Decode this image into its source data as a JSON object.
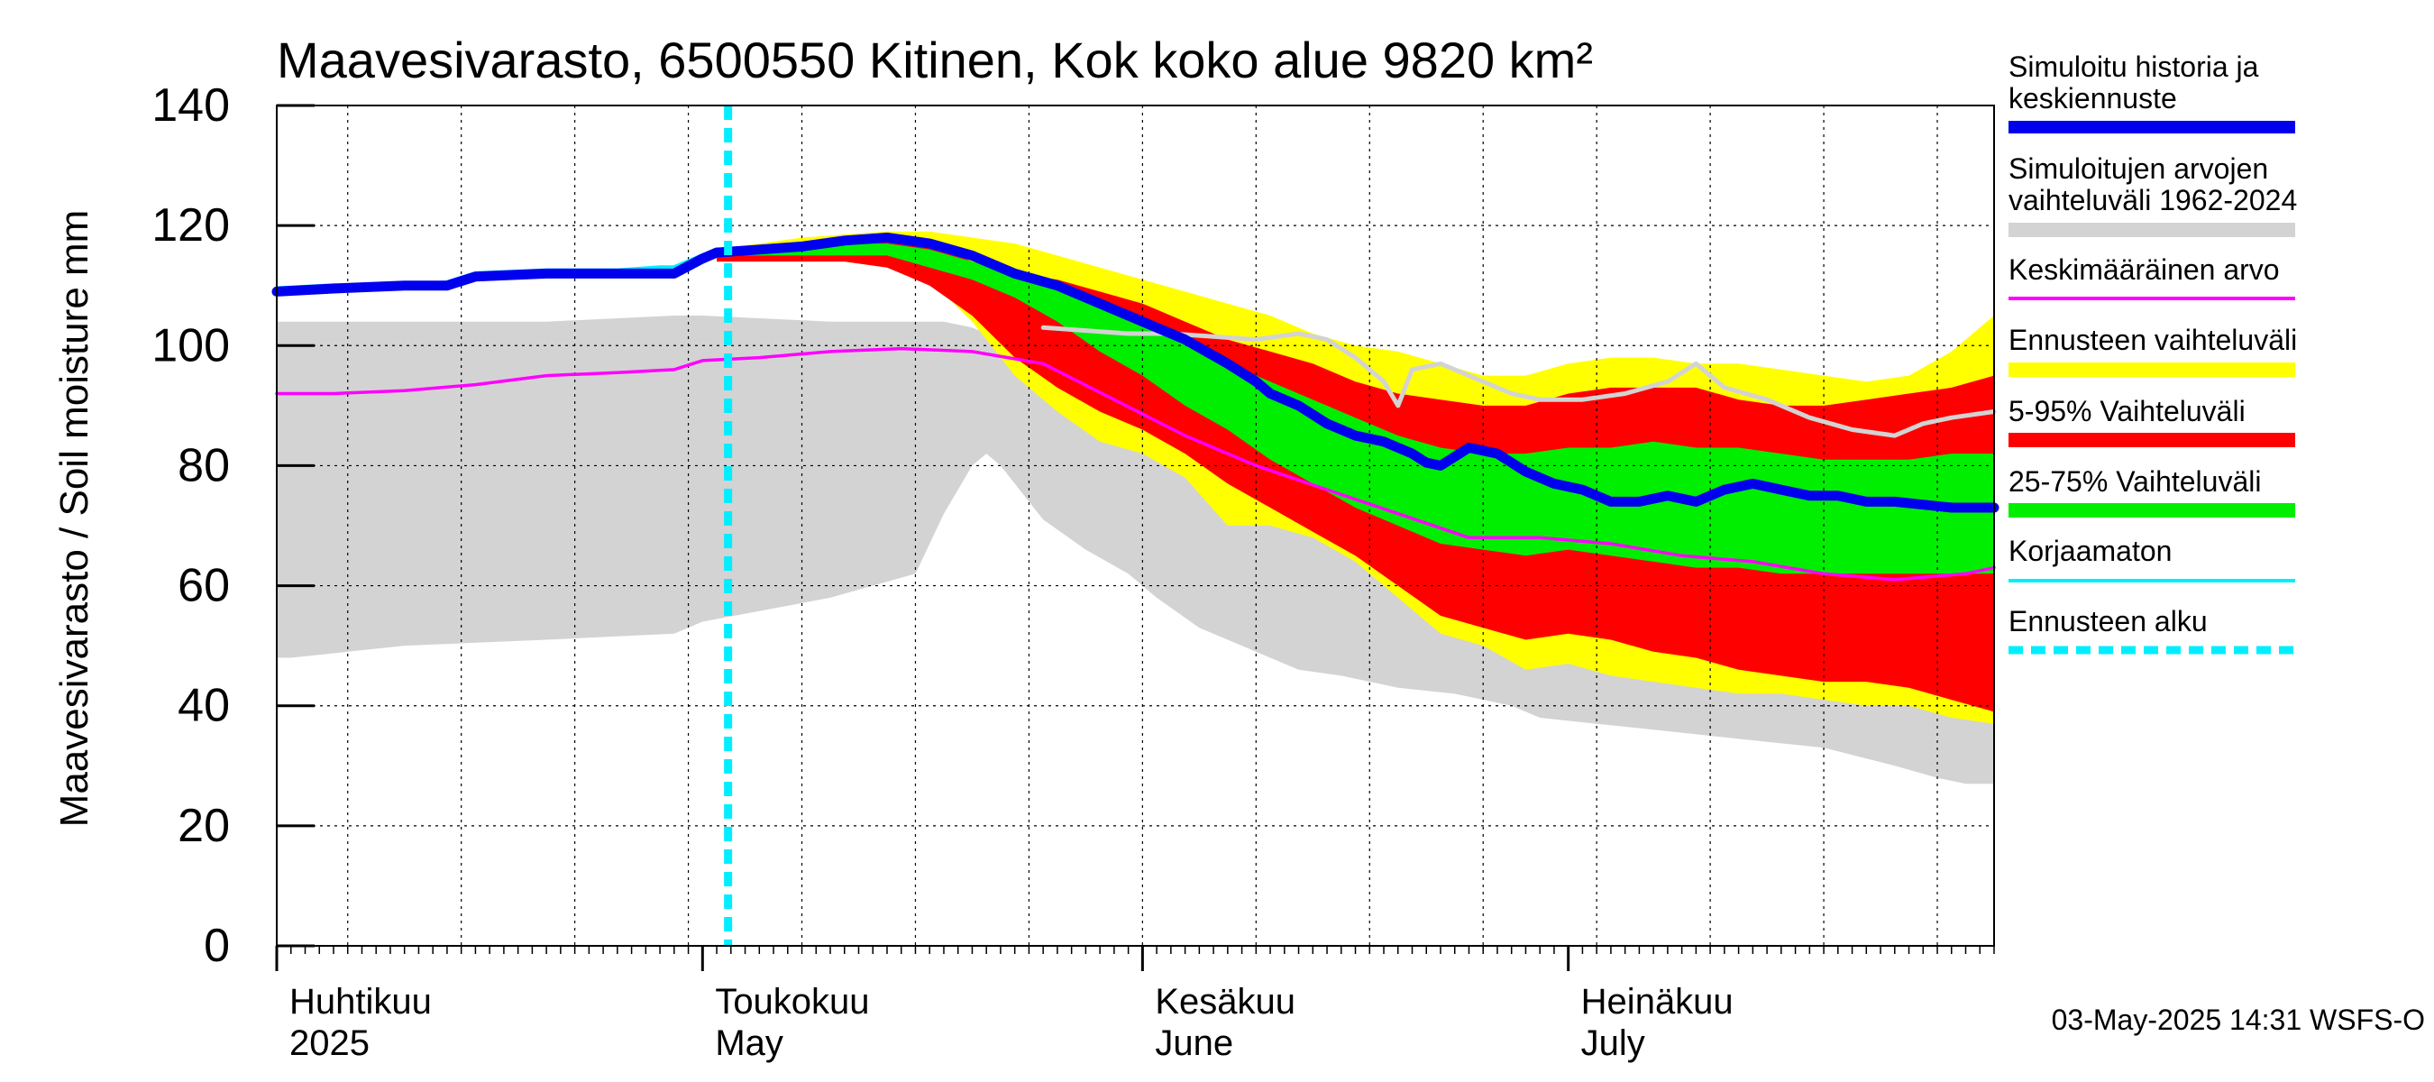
{
  "chart_data": {
    "type": "area",
    "title": "Maavesivarasto, 6500550 Kitinen, Kok koko alue 9820 km²",
    "ylabel": "Maavesivarasto / Soil moisture   mm",
    "ylim": [
      0,
      140
    ],
    "yticks": [
      0,
      20,
      40,
      60,
      80,
      100,
      120,
      140
    ],
    "x_unit": "day of year 2025",
    "xlim": [
      91,
      212
    ],
    "month_labels": [
      {
        "fi": "Huhtikuu",
        "en": "2025",
        "day": 91
      },
      {
        "fi": "Toukokuu",
        "en": "May",
        "day": 121
      },
      {
        "fi": "Kesäkuu",
        "en": "June",
        "day": 152
      },
      {
        "fi": "Heinäkuu",
        "en": "July",
        "day": 182
      }
    ],
    "forecast_start_day": 122.8,
    "footer": "03-May-2025 14:31 WSFS-O",
    "legend": [
      {
        "label": "Simuloitu historia ja keskiennuste",
        "color": "#0000ee",
        "style": "thick"
      },
      {
        "label": "Simuloitujen arvojen vaihteluväli 1962-2024",
        "color": "#d3d3d3",
        "style": "band"
      },
      {
        "label": "Keskimääräinen arvo",
        "color": "#ff00ff",
        "style": "line"
      },
      {
        "label": "Ennusteen vaihteluväli",
        "color": "#ffff00",
        "style": "band"
      },
      {
        "label": "5-95% Vaihteluväli",
        "color": "#ff0000",
        "style": "band"
      },
      {
        "label": "25-75% Vaihteluväli",
        "color": "#00ee00",
        "style": "band"
      },
      {
        "label": "Korjaamaton",
        "color": "#00eeff",
        "style": "line"
      },
      {
        "label": "Ennusteen alku",
        "color": "#00eeff",
        "style": "dashed"
      }
    ],
    "series": {
      "hist_range": {
        "x": [
          91,
          92,
          100,
          110,
          119,
          121,
          130,
          136,
          138,
          140,
          141,
          142,
          143,
          145,
          148,
          151,
          153,
          156,
          160,
          163,
          166,
          170,
          174,
          178,
          180,
          184,
          188,
          192,
          196,
          200,
          205,
          208,
          210,
          212
        ],
        "upper": [
          104,
          104,
          104,
          104,
          105,
          105,
          104,
          104,
          104,
          103,
          102,
          101,
          100,
          98,
          95,
          91,
          87,
          84,
          81,
          78,
          76,
          73,
          69,
          65,
          63,
          63,
          62,
          61,
          60,
          59,
          58,
          57,
          56,
          56
        ],
        "lower": [
          48,
          48,
          50,
          51,
          52,
          54,
          58,
          62,
          72,
          80,
          82,
          80,
          77,
          71,
          66,
          62,
          58,
          53,
          49,
          46,
          45,
          43,
          42,
          40,
          38,
          37,
          36,
          35,
          34,
          33,
          30,
          28,
          27,
          27
        ]
      },
      "hist_mean": {
        "x": [
          91,
          95,
          100,
          105,
          110,
          115,
          119,
          121,
          125,
          130,
          135,
          140,
          145,
          150,
          155,
          160,
          165,
          170,
          175,
          180,
          185,
          190,
          195,
          200,
          205,
          210,
          212
        ],
        "y": [
          92,
          92,
          92.5,
          93.5,
          95,
          95.5,
          96,
          97.5,
          98,
          99,
          99.5,
          99,
          97,
          91,
          85,
          80,
          76,
          72,
          68,
          68,
          67,
          65,
          64,
          62,
          61,
          62,
          63
        ]
      },
      "hist_line": {
        "x": [
          145,
          148,
          151,
          154,
          157,
          160,
          163,
          165,
          167,
          169,
          170,
          171,
          173,
          175,
          178,
          180,
          183,
          186,
          189,
          191,
          193,
          196,
          199,
          202,
          205,
          207,
          209,
          212
        ],
        "y": [
          103,
          102.5,
          102,
          102,
          101.5,
          101,
          102,
          101,
          98,
          94,
          90,
          96,
          97,
          95,
          92,
          91,
          91,
          92,
          94,
          97,
          93,
          91,
          88,
          86,
          85,
          87,
          88,
          89
        ]
      },
      "forecast_range": {
        "x": [
          122,
          125,
          128,
          131,
          134,
          137,
          140,
          143,
          146,
          149,
          152,
          155,
          158,
          161,
          164,
          167,
          170,
          173,
          176,
          179,
          182,
          185,
          188,
          191,
          194,
          197,
          200,
          203,
          206,
          209,
          212
        ],
        "upper": [
          116,
          117,
          118,
          118.5,
          119,
          119,
          118,
          117,
          115,
          113,
          111,
          109,
          107,
          105,
          102,
          100,
          99,
          97,
          95,
          95,
          97,
          98,
          98,
          97,
          97,
          96,
          95,
          94,
          95,
          99,
          105
        ],
        "lower": [
          114,
          114,
          114,
          114,
          113,
          111,
          104,
          95,
          89,
          84,
          82,
          78,
          70,
          70,
          68,
          64,
          58,
          52,
          50,
          46,
          47,
          45,
          44,
          43,
          42,
          42,
          41,
          40,
          40,
          38,
          37
        ]
      },
      "p5_95": {
        "x": [
          122,
          125,
          128,
          131,
          134,
          137,
          140,
          143,
          146,
          149,
          152,
          155,
          158,
          161,
          164,
          167,
          170,
          173,
          176,
          179,
          182,
          185,
          188,
          191,
          194,
          197,
          200,
          203,
          206,
          209,
          212
        ],
        "upper": [
          116,
          116,
          117,
          117.5,
          118,
          117,
          114,
          112,
          111,
          109,
          107,
          104,
          101,
          99,
          97,
          94,
          92,
          91,
          90,
          90,
          92,
          93,
          93,
          93,
          91,
          90,
          90,
          91,
          92,
          93,
          95
        ],
        "lower": [
          114,
          114,
          114,
          114,
          113,
          110,
          105,
          98,
          93,
          89,
          86,
          82,
          77,
          73,
          69,
          65,
          60,
          55,
          53,
          51,
          52,
          51,
          49,
          48,
          46,
          45,
          44,
          44,
          43,
          41,
          39
        ]
      },
      "p25_75": {
        "x": [
          122,
          125,
          128,
          131,
          134,
          137,
          140,
          143,
          146,
          149,
          152,
          155,
          158,
          161,
          164,
          167,
          170,
          173,
          176,
          179,
          182,
          185,
          188,
          191,
          194,
          197,
          200,
          203,
          206,
          209,
          212
        ],
        "upper": [
          116,
          116,
          116,
          117,
          117,
          116,
          114,
          112,
          110,
          107,
          104,
          101,
          97,
          94,
          91,
          88,
          85,
          83,
          82,
          82,
          83,
          83,
          84,
          83,
          83,
          82,
          81,
          81,
          81,
          82,
          82
        ],
        "lower": [
          115,
          115,
          115,
          115,
          115,
          113,
          111,
          108,
          104,
          99,
          95,
          90,
          86,
          81,
          77,
          73,
          70,
          67,
          66,
          65,
          66,
          65,
          64,
          63,
          63,
          62,
          62,
          62,
          62,
          62,
          62
        ]
      },
      "uncorrected": {
        "x": [
          91,
          95,
          100,
          103,
          105,
          110,
          115,
          118,
          119,
          121,
          122
        ],
        "y": [
          109.5,
          110,
          110,
          110.5,
          112,
          112.5,
          112.5,
          113,
          113,
          115,
          116
        ]
      },
      "simulated": {
        "x": [
          91,
          95,
          100,
          103,
          105,
          110,
          115,
          118,
          119,
          121,
          122,
          125,
          128,
          131,
          134,
          137,
          140,
          143,
          146,
          149,
          152,
          155,
          158,
          160,
          161,
          163,
          165,
          167,
          169,
          171,
          172,
          173,
          175,
          177,
          179,
          181,
          183,
          185,
          187,
          189,
          191,
          193,
          195,
          197,
          199,
          201,
          203,
          205,
          207,
          209,
          211,
          212
        ],
        "y": [
          109,
          109.5,
          110,
          110,
          111.5,
          112,
          112,
          112,
          112,
          114.5,
          115.5,
          116,
          116.5,
          117.5,
          118,
          117,
          115,
          112,
          110,
          107,
          104,
          101,
          97,
          94,
          92,
          90,
          87,
          85,
          84,
          82,
          80.5,
          80,
          83,
          82,
          79,
          77,
          76,
          74,
          74,
          75,
          74,
          76,
          77,
          76,
          75,
          75,
          74,
          74,
          73.5,
          73,
          73,
          73
        ]
      }
    }
  }
}
